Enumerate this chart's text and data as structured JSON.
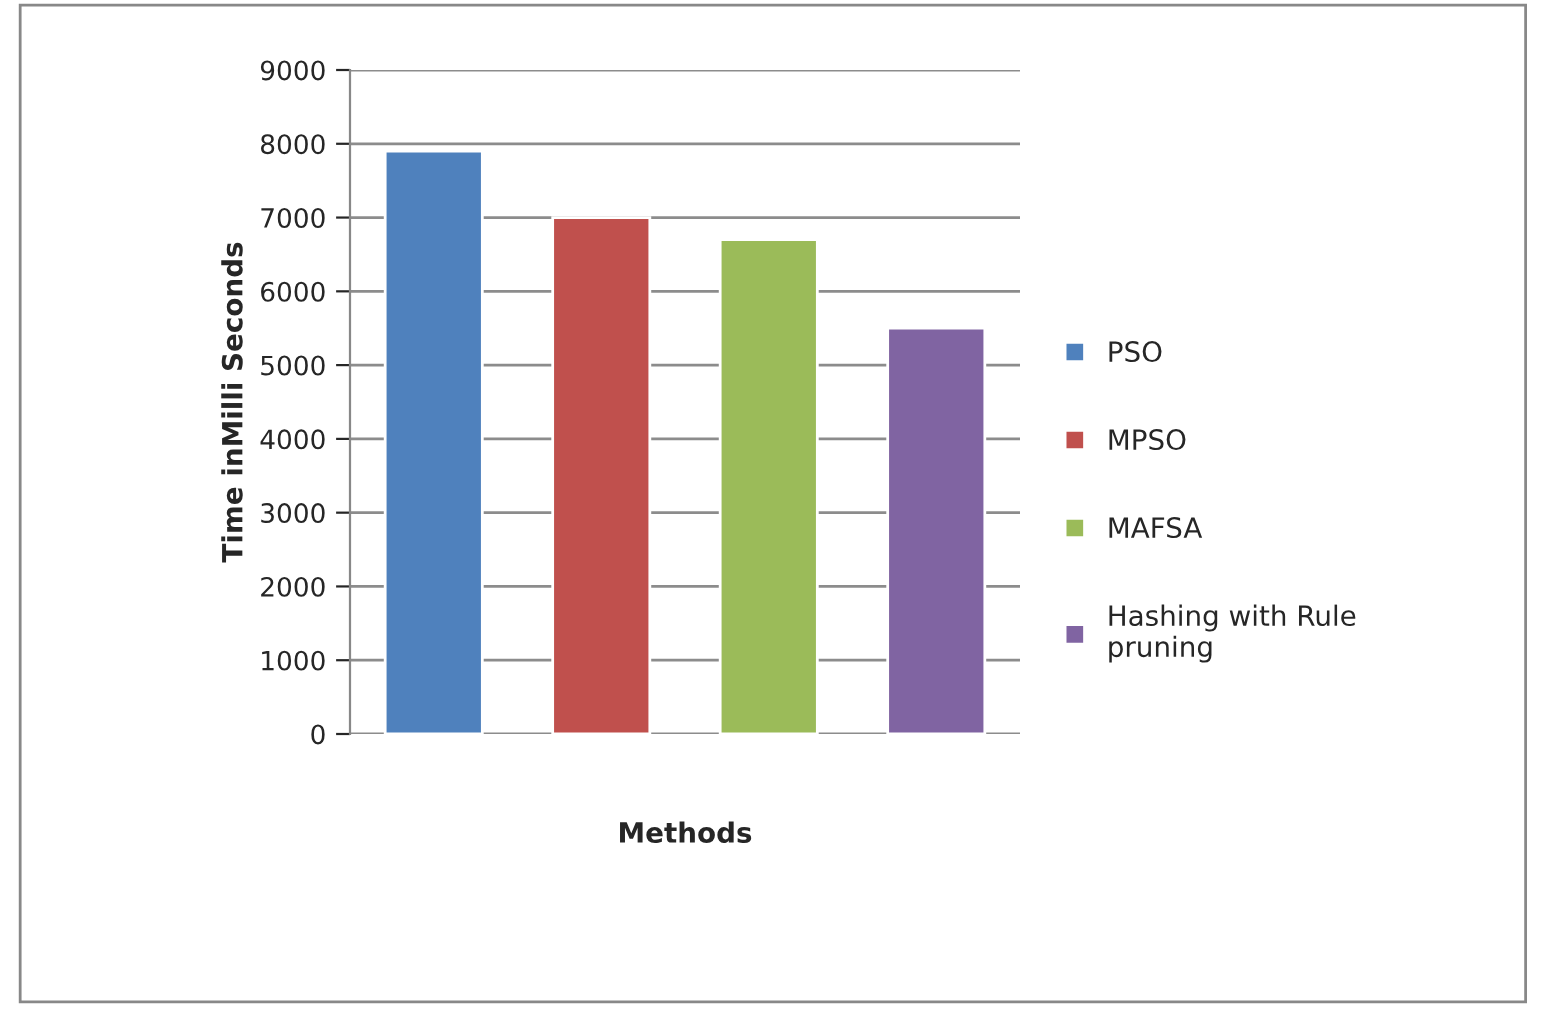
{
  "chart_data": {
    "type": "bar",
    "xlabel": "Methods",
    "ylabel": "Time inMilli Seconds",
    "categories": [
      null,
      null,
      null,
      null
    ],
    "series": [
      {
        "name": "PSO",
        "color": "#4f81bd",
        "values": [
          7900,
          null,
          null,
          null
        ]
      },
      {
        "name": "MPSO",
        "color": "#c0504d",
        "values": [
          null,
          7000,
          null,
          null
        ]
      },
      {
        "name": "MAFSA",
        "color": "#9bbb59",
        "values": [
          null,
          null,
          6700,
          null
        ]
      },
      {
        "name": "Hashing with Rule pruning",
        "color": "#8064a2",
        "values": [
          null,
          null,
          null,
          5500
        ]
      }
    ],
    "ylim": [
      0,
      9000
    ],
    "yticks": [
      0,
      1000,
      2000,
      3000,
      4000,
      5000,
      6000,
      7000,
      8000,
      9000
    ],
    "grid": "y",
    "legend": "right"
  }
}
